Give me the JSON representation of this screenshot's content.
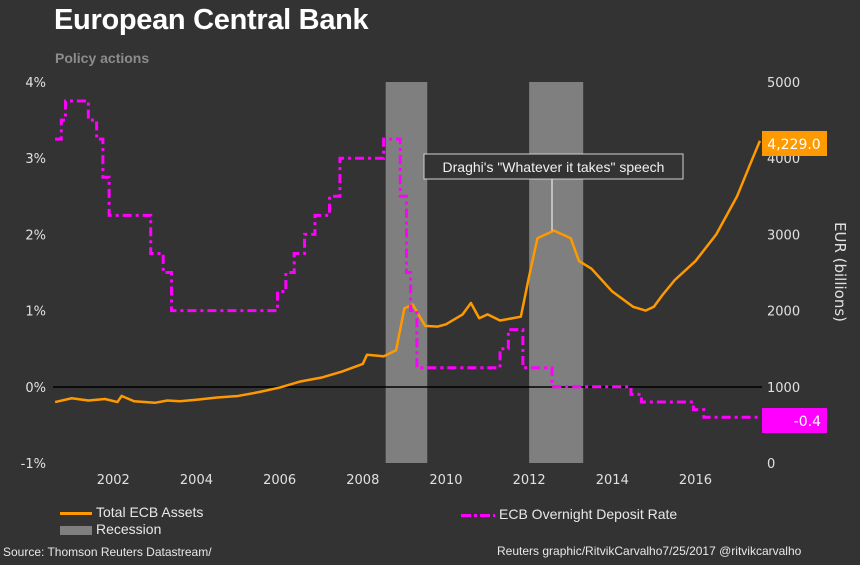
{
  "title": "European Central Bank",
  "subtitle": "Policy actions",
  "source": "Source: Thomson Reuters Datastream/",
  "credit": "Reuters graphic/RitvikCarvalho7/25/2017  @ritvikcarvalho",
  "colors": {
    "assets": "#ff9900",
    "rate": "#ff00ff",
    "recession": "#7f7f7f",
    "background": "#333333"
  },
  "chart_data": {
    "type": "line",
    "title": "European Central Bank",
    "subtitle": "Policy actions",
    "xlabel": "",
    "ylabel_left": "",
    "ylabel_right": "EUR (billions)",
    "xlim": [
      2000.55,
      2017.6
    ],
    "ylim_left": [
      -1,
      4
    ],
    "ylim_right": [
      0,
      5000
    ],
    "x_ticks": [
      "2002",
      "2004",
      "2006",
      "2008",
      "2010",
      "2012",
      "2014",
      "2016"
    ],
    "y_ticks_left": [
      "4%",
      "3%",
      "2%",
      "1%",
      "0%",
      "-1%"
    ],
    "y_ticks_right": [
      "5000",
      "4000",
      "3000",
      "2000",
      "1000",
      "0"
    ],
    "legend": [
      {
        "label": "Total ECB Assets",
        "kind": "line"
      },
      {
        "label": "Recession",
        "kind": "area"
      },
      {
        "label": "ECB Overnight Deposit Rate",
        "kind": "dashdot"
      }
    ],
    "legend_position": "bottom",
    "recessions": [
      [
        2008.55,
        2009.55
      ],
      [
        2012.0,
        2013.3
      ]
    ],
    "annotation": {
      "text": "Draghi's \"Whatever it takes\" speech",
      "x": 2012.55
    },
    "end_labels": {
      "assets": "4,229.0",
      "rate": "-0.4"
    },
    "series": [
      {
        "name": "Total ECB Assets",
        "axis": "right",
        "x": [
          2000.6,
          2001.0,
          2001.4,
          2001.8,
          2002.1,
          2002.2,
          2002.5,
          2003.0,
          2003.3,
          2003.6,
          2004.0,
          2004.5,
          2005.0,
          2005.5,
          2006.0,
          2006.5,
          2007.0,
          2007.5,
          2007.9,
          2008.0,
          2008.1,
          2008.5,
          2008.8,
          2009.0,
          2009.2,
          2009.5,
          2009.8,
          2010.0,
          2010.4,
          2010.6,
          2010.8,
          2011.0,
          2011.3,
          2011.6,
          2011.8,
          2012.0,
          2012.2,
          2012.4,
          2012.6,
          2013.0,
          2013.2,
          2013.5,
          2014.0,
          2014.5,
          2014.8,
          2015.0,
          2015.2,
          2015.5,
          2016.0,
          2016.5,
          2017.0,
          2017.3,
          2017.55
        ],
        "values": [
          800,
          850,
          820,
          840,
          800,
          880,
          810,
          790,
          820,
          810,
          830,
          860,
          880,
          930,
          990,
          1070,
          1120,
          1200,
          1280,
          1300,
          1420,
          1400,
          1480,
          2030,
          2080,
          1800,
          1790,
          1820,
          1950,
          2100,
          1900,
          1950,
          1870,
          1900,
          1920,
          2450,
          2950,
          3000,
          3050,
          2950,
          2650,
          2550,
          2250,
          2050,
          2000,
          2050,
          2200,
          2400,
          2650,
          3000,
          3500,
          3900,
          4229
        ]
      },
      {
        "name": "ECB Overnight Deposit Rate",
        "axis": "left",
        "x": [
          2000.6,
          2000.75,
          2000.85,
          2001.4,
          2001.6,
          2001.75,
          2001.9,
          2002.9,
          2003.2,
          2003.4,
          2003.5,
          2005.95,
          2006.15,
          2006.35,
          2006.6,
          2006.85,
          2007.2,
          2007.45,
          2008.5,
          2008.9,
          2009.05,
          2009.15,
          2009.3,
          2011.3,
          2011.5,
          2011.85,
          2012.0,
          2012.55,
          2013.4,
          2014.45,
          2014.7,
          2015.95,
          2016.2,
          2017.55
        ],
        "values": [
          3.25,
          3.5,
          3.75,
          3.5,
          3.25,
          2.75,
          2.25,
          1.75,
          1.5,
          1.0,
          1.0,
          1.25,
          1.5,
          1.75,
          2.0,
          2.25,
          2.5,
          3.0,
          3.25,
          2.5,
          1.5,
          1.0,
          0.25,
          0.5,
          0.75,
          0.25,
          0.25,
          0.0,
          0.0,
          -0.1,
          -0.2,
          -0.3,
          -0.4,
          -0.4
        ]
      }
    ]
  }
}
